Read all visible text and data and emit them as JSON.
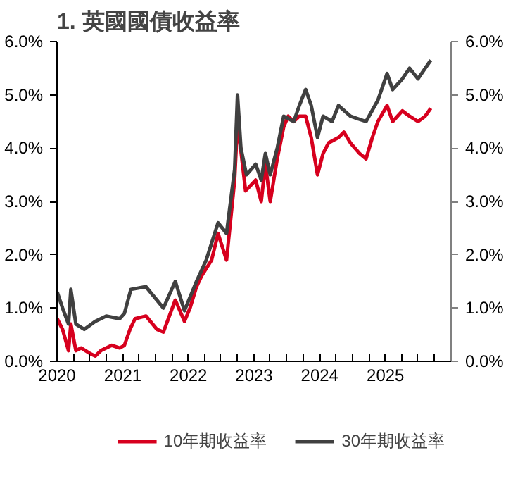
{
  "chart_data": {
    "type": "line",
    "title": "1. 英國國債收益率",
    "xlim": [
      "2020-01-01",
      "2026-01-01"
    ],
    "xticks": [
      {
        "value": "2020-01-01",
        "label": "2020"
      },
      {
        "value": "2020-04-01",
        "label": null
      },
      {
        "value": "2020-07-01",
        "label": null
      },
      {
        "value": "2020-10-01",
        "label": null
      },
      {
        "value": "2021-01-01",
        "label": "2021"
      },
      {
        "value": "2021-04-01",
        "label": null
      },
      {
        "value": "2021-07-01",
        "label": null
      },
      {
        "value": "2021-10-01",
        "label": null
      },
      {
        "value": "2022-01-01",
        "label": "2022"
      },
      {
        "value": "2022-04-01",
        "label": null
      },
      {
        "value": "2022-07-01",
        "label": null
      },
      {
        "value": "2022-10-01",
        "label": null
      },
      {
        "value": "2023-01-01",
        "label": "2023"
      },
      {
        "value": "2023-04-01",
        "label": null
      },
      {
        "value": "2023-07-01",
        "label": null
      },
      {
        "value": "2023-10-01",
        "label": null
      },
      {
        "value": "2024-01-01",
        "label": "2024"
      },
      {
        "value": "2024-04-01",
        "label": null
      },
      {
        "value": "2024-07-01",
        "label": null
      },
      {
        "value": "2024-10-01",
        "label": null
      },
      {
        "value": "2025-01-01",
        "label": "2025"
      },
      {
        "value": "2025-04-01",
        "label": null
      },
      {
        "value": "2025-07-01",
        "label": null
      },
      {
        "value": "2025-10-01",
        "label": null
      },
      {
        "value": "2026-01-01",
        "label": null
      }
    ],
    "ylim": [
      0,
      6
    ],
    "yticks": [
      {
        "value": 0,
        "label": "0.0%"
      },
      {
        "value": 1,
        "label": "1.0%"
      },
      {
        "value": 2,
        "label": "2.0%"
      },
      {
        "value": 3,
        "label": "3.0%"
      },
      {
        "value": 4,
        "label": "4.0%"
      },
      {
        "value": 5,
        "label": "5.0%"
      },
      {
        "value": 6,
        "label": "6.0%"
      }
    ],
    "y2lim": [
      0,
      6
    ],
    "y2ticks": [
      {
        "value": 0,
        "label": "0.0%"
      },
      {
        "value": 1,
        "label": "1.0%"
      },
      {
        "value": 2,
        "label": "2.0%"
      },
      {
        "value": 3,
        "label": "3.0%"
      },
      {
        "value": 4,
        "label": "4.0%"
      },
      {
        "value": 5,
        "label": "5.0%"
      },
      {
        "value": 6,
        "label": "6.0%"
      }
    ],
    "grid": false,
    "legend": "bottom",
    "marker": "none",
    "line_style": "solid",
    "series": [
      {
        "name": "10年期收益率",
        "color": "#d7001e",
        "x": [
          "2020-01-02",
          "2020-02-01",
          "2020-03-05",
          "2020-03-18",
          "2020-04-15",
          "2020-05-15",
          "2020-07-01",
          "2020-08-01",
          "2020-09-01",
          "2020-11-01",
          "2020-12-15",
          "2021-01-10",
          "2021-02-10",
          "2021-03-10",
          "2021-05-10",
          "2021-07-10",
          "2021-08-15",
          "2021-10-20",
          "2021-12-10",
          "2022-01-10",
          "2022-02-15",
          "2022-03-15",
          "2022-05-10",
          "2022-06-15",
          "2022-08-01",
          "2022-09-15",
          "2022-10-01",
          "2022-11-15",
          "2023-01-10",
          "2023-02-10",
          "2023-03-05",
          "2023-04-01",
          "2023-05-10",
          "2023-06-15",
          "2023-07-10",
          "2023-08-10",
          "2023-09-10",
          "2023-10-15",
          "2023-11-15",
          "2023-12-20",
          "2024-01-20",
          "2024-02-20",
          "2024-04-15",
          "2024-05-15",
          "2024-06-20",
          "2024-08-10",
          "2024-09-15",
          "2024-10-20",
          "2024-11-20",
          "2025-01-10",
          "2025-02-10",
          "2025-04-05",
          "2025-05-15",
          "2025-07-01",
          "2025-08-10",
          "2025-09-10"
        ],
        "values": [
          0.8,
          0.6,
          0.2,
          0.7,
          0.2,
          0.25,
          0.15,
          0.1,
          0.2,
          0.3,
          0.25,
          0.3,
          0.6,
          0.8,
          0.85,
          0.6,
          0.55,
          1.15,
          0.75,
          1.0,
          1.4,
          1.6,
          1.9,
          2.4,
          1.9,
          3.4,
          4.5,
          3.2,
          3.4,
          3.0,
          3.7,
          3.0,
          3.8,
          4.4,
          4.6,
          4.5,
          4.6,
          4.6,
          4.2,
          3.5,
          3.9,
          4.1,
          4.2,
          4.3,
          4.1,
          3.9,
          3.8,
          4.2,
          4.5,
          4.8,
          4.5,
          4.7,
          4.6,
          4.5,
          4.6,
          4.75
        ]
      },
      {
        "name": "30年期收益率",
        "color": "#404040",
        "x": [
          "2020-01-02",
          "2020-02-01",
          "2020-03-05",
          "2020-03-18",
          "2020-04-15",
          "2020-06-01",
          "2020-08-01",
          "2020-10-01",
          "2020-12-15",
          "2021-01-10",
          "2021-02-15",
          "2021-05-10",
          "2021-08-15",
          "2021-10-20",
          "2021-12-10",
          "2022-02-15",
          "2022-04-10",
          "2022-06-15",
          "2022-08-01",
          "2022-09-15",
          "2022-10-01",
          "2022-10-20",
          "2022-11-20",
          "2023-01-10",
          "2023-02-10",
          "2023-03-05",
          "2023-04-01",
          "2023-05-10",
          "2023-06-15",
          "2023-08-10",
          "2023-09-10",
          "2023-10-15",
          "2023-11-15",
          "2023-12-20",
          "2024-01-20",
          "2024-03-10",
          "2024-04-15",
          "2024-06-20",
          "2024-09-15",
          "2024-11-20",
          "2025-01-10",
          "2025-02-10",
          "2025-04-05",
          "2025-05-15",
          "2025-07-01",
          "2025-08-10",
          "2025-09-10"
        ],
        "values": [
          1.3,
          1.0,
          0.7,
          1.35,
          0.7,
          0.6,
          0.75,
          0.85,
          0.8,
          0.9,
          1.35,
          1.4,
          1.0,
          1.5,
          0.95,
          1.5,
          1.9,
          2.6,
          2.4,
          3.6,
          5.0,
          4.0,
          3.5,
          3.7,
          3.4,
          3.9,
          3.5,
          4.0,
          4.6,
          4.5,
          4.8,
          5.1,
          4.8,
          4.2,
          4.6,
          4.5,
          4.8,
          4.6,
          4.5,
          4.9,
          5.4,
          5.1,
          5.3,
          5.5,
          5.3,
          5.5,
          5.65
        ]
      }
    ]
  }
}
